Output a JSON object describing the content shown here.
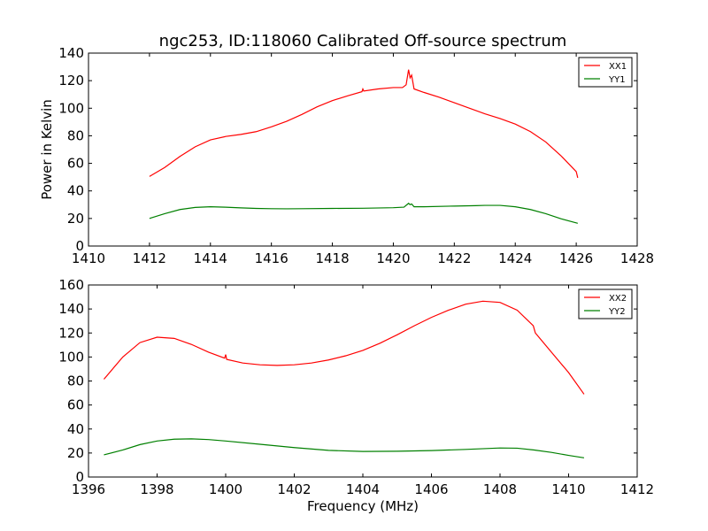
{
  "figure": {
    "title": "ngc253, ID:118060 Calibrated Off-source spectrum",
    "ylabel": "Power in Kelvin",
    "xlabel": "Frequency (MHz)"
  },
  "chart_data": [
    {
      "type": "line",
      "title": "ngc253, ID:118060 Calibrated Off-source spectrum",
      "xlabel": "",
      "ylabel": "Power in Kelvin",
      "xlim": [
        1410,
        1428
      ],
      "ylim": [
        0,
        140
      ],
      "xticks": [
        1410,
        1412,
        1414,
        1416,
        1418,
        1420,
        1422,
        1424,
        1426,
        1428
      ],
      "yticks": [
        0,
        20,
        40,
        60,
        80,
        100,
        120,
        140
      ],
      "grid": false,
      "legend": "top-right",
      "series": [
        {
          "name": "XX1",
          "color": "#ff0000",
          "points": [
            [
              1412.0,
              50.5
            ],
            [
              1412.5,
              57
            ],
            [
              1413.0,
              65
            ],
            [
              1413.5,
              72
            ],
            [
              1414.0,
              77
            ],
            [
              1414.5,
              79.5
            ],
            [
              1415.0,
              81
            ],
            [
              1415.5,
              83
            ],
            [
              1416.0,
              86.5
            ],
            [
              1416.5,
              90.5
            ],
            [
              1417.0,
              95.5
            ],
            [
              1417.5,
              101
            ],
            [
              1418.0,
              105.5
            ],
            [
              1418.5,
              109
            ],
            [
              1418.97,
              112
            ],
            [
              1419.0,
              114
            ],
            [
              1419.03,
              112.5
            ],
            [
              1419.5,
              114
            ],
            [
              1420.0,
              115
            ],
            [
              1420.3,
              115
            ],
            [
              1420.42,
              117
            ],
            [
              1420.5,
              128
            ],
            [
              1420.55,
              122
            ],
            [
              1420.6,
              124
            ],
            [
              1420.68,
              114
            ],
            [
              1421.0,
              111.5
            ],
            [
              1421.5,
              108
            ],
            [
              1422.0,
              104
            ],
            [
              1422.5,
              100
            ],
            [
              1423.0,
              96
            ],
            [
              1423.5,
              92.5
            ],
            [
              1424.0,
              88.5
            ],
            [
              1424.5,
              83
            ],
            [
              1425.0,
              75.5
            ],
            [
              1425.5,
              65.5
            ],
            [
              1426.0,
              54
            ],
            [
              1426.05,
              49.5
            ]
          ]
        },
        {
          "name": "YY1",
          "color": "#008000",
          "points": [
            [
              1412.0,
              20
            ],
            [
              1412.5,
              23.5
            ],
            [
              1413.0,
              26.5
            ],
            [
              1413.5,
              28
            ],
            [
              1414.0,
              28.5
            ],
            [
              1414.5,
              28.2
            ],
            [
              1415.0,
              27.7
            ],
            [
              1415.5,
              27.3
            ],
            [
              1416.0,
              27.1
            ],
            [
              1416.5,
              27
            ],
            [
              1417.0,
              27.1
            ],
            [
              1418.0,
              27.3
            ],
            [
              1419.0,
              27.4
            ],
            [
              1420.0,
              27.8
            ],
            [
              1420.35,
              28.2
            ],
            [
              1420.5,
              31
            ],
            [
              1420.55,
              30
            ],
            [
              1420.6,
              30.5
            ],
            [
              1420.68,
              28.5
            ],
            [
              1421.0,
              28.5
            ],
            [
              1422.0,
              29
            ],
            [
              1422.7,
              29.3
            ],
            [
              1423.0,
              29.5
            ],
            [
              1423.5,
              29.5
            ],
            [
              1424.0,
              28.5
            ],
            [
              1424.5,
              26.5
            ],
            [
              1425.0,
              23.5
            ],
            [
              1425.5,
              19.8
            ],
            [
              1426.05,
              16.5
            ]
          ]
        }
      ]
    },
    {
      "type": "line",
      "title": "",
      "xlabel": "Frequency (MHz)",
      "ylabel": "",
      "xlim": [
        1396,
        1412
      ],
      "ylim": [
        0,
        160
      ],
      "xticks": [
        1396,
        1398,
        1400,
        1402,
        1404,
        1406,
        1408,
        1410,
        1412
      ],
      "yticks": [
        0,
        20,
        40,
        60,
        80,
        100,
        120,
        140,
        160
      ],
      "grid": false,
      "legend": "top-right",
      "series": [
        {
          "name": "XX2",
          "color": "#ff0000",
          "points": [
            [
              1396.45,
              81.5
            ],
            [
              1397.0,
              100
            ],
            [
              1397.5,
              112
            ],
            [
              1398.0,
              116.5
            ],
            [
              1398.5,
              115.5
            ],
            [
              1399.0,
              110.5
            ],
            [
              1399.5,
              104
            ],
            [
              1399.97,
              99
            ],
            [
              1400.0,
              102
            ],
            [
              1400.03,
              98
            ],
            [
              1400.5,
              95
            ],
            [
              1401.0,
              93.5
            ],
            [
              1401.5,
              93
            ],
            [
              1402.0,
              93.5
            ],
            [
              1402.5,
              95
            ],
            [
              1403.0,
              97.5
            ],
            [
              1403.5,
              101
            ],
            [
              1404.0,
              105.5
            ],
            [
              1404.5,
              111.5
            ],
            [
              1405.0,
              118.5
            ],
            [
              1405.5,
              126
            ],
            [
              1406.0,
              133
            ],
            [
              1406.5,
              139
            ],
            [
              1407.0,
              144
            ],
            [
              1407.5,
              146.5
            ],
            [
              1408.0,
              145.5
            ],
            [
              1408.5,
              139
            ],
            [
              1408.97,
              126
            ],
            [
              1409.0,
              123
            ],
            [
              1409.03,
              120
            ],
            [
              1409.5,
              104
            ],
            [
              1410.0,
              87
            ],
            [
              1410.45,
              69
            ]
          ]
        },
        {
          "name": "YY2",
          "color": "#008000",
          "points": [
            [
              1396.45,
              18.5
            ],
            [
              1397.0,
              22.5
            ],
            [
              1397.5,
              27
            ],
            [
              1398.0,
              30
            ],
            [
              1398.5,
              31.5
            ],
            [
              1399.0,
              31.8
            ],
            [
              1399.5,
              31.2
            ],
            [
              1400.0,
              30
            ],
            [
              1401.0,
              27.3
            ],
            [
              1402.0,
              24.5
            ],
            [
              1403.0,
              22.2
            ],
            [
              1404.0,
              21.3
            ],
            [
              1405.0,
              21.5
            ],
            [
              1406.0,
              22
            ],
            [
              1407.0,
              23
            ],
            [
              1408.0,
              24.2
            ],
            [
              1408.5,
              24
            ],
            [
              1409.0,
              22.5
            ],
            [
              1409.5,
              20.5
            ],
            [
              1410.0,
              18
            ],
            [
              1410.45,
              16
            ]
          ]
        }
      ]
    }
  ]
}
